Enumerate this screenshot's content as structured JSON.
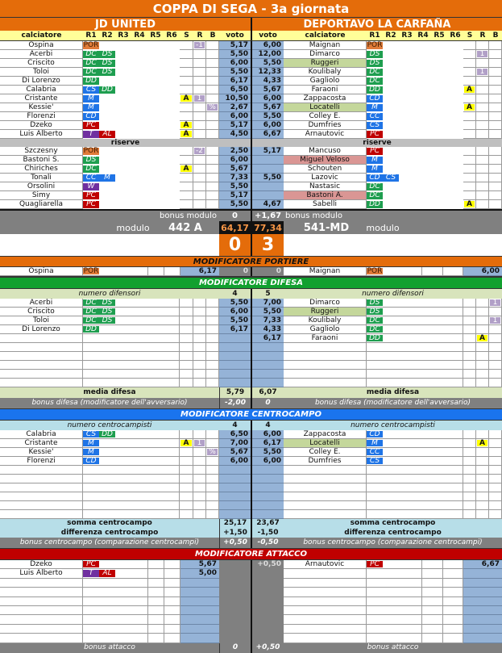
{
  "title": "COPPA DI SEGA - 3a giornata",
  "colors": {
    "POR": "#e07b39",
    "DC": "#1e9e4f",
    "DS": "#1e9e4f",
    "DD": "#1e9e4f",
    "CS": "#1f74e6",
    "CD": "#1f74e6",
    "M": "#1f74e6",
    "CC": "#1f74e6",
    "PC": "#c00000",
    "AL": "#c00000",
    "T": "#7030a0",
    "W": "#7030a0",
    "green_hl": "#c4d79b",
    "pink_hl": "#da9694",
    "voto": "#95b3d7",
    "orange": "#e46c0a"
  },
  "home": {
    "name": "JD UNITED"
  },
  "away": {
    "name": "DEPORTAVO LA CARFAÑA"
  },
  "columns": {
    "player": "calciatore",
    "r1": "R1",
    "r2": "R2",
    "r3": "R3",
    "r4": "R4",
    "r5": "R5",
    "r6": "R6",
    "s": "S",
    "r": "R",
    "b": "B",
    "voto": "voto"
  },
  "starters": [
    {
      "l": {
        "name": "Ospina",
        "roles": [
          "POR"
        ],
        "r": "-1",
        "voto": "5,17"
      },
      "r": {
        "name": "Maignan",
        "roles": [
          "POR"
        ],
        "voto": "6,00"
      }
    },
    {
      "l": {
        "name": "Acerbi",
        "roles": [
          "DC",
          "DS"
        ],
        "voto": "5,50"
      },
      "r": {
        "name": "Dimarco",
        "roles": [
          "DS"
        ],
        "r": "1",
        "voto": "12,00"
      }
    },
    {
      "l": {
        "name": "Criscito",
        "roles": [
          "DC",
          "DS"
        ],
        "voto": "6,00"
      },
      "r": {
        "name": "Ruggeri",
        "roles": [
          "DS"
        ],
        "hl": "green",
        "voto": "5,50"
      }
    },
    {
      "l": {
        "name": "Toloi",
        "roles": [
          "DC",
          "DS"
        ],
        "voto": "5,50"
      },
      "r": {
        "name": "Koulibaly",
        "roles": [
          "DC"
        ],
        "r": "1",
        "voto": "12,33"
      }
    },
    {
      "l": {
        "name": "Di Lorenzo",
        "roles": [
          "DD"
        ],
        "voto": "6,17"
      },
      "r": {
        "name": "Gagliolo",
        "roles": [
          "DC"
        ],
        "voto": "4,33"
      }
    },
    {
      "l": {
        "name": "Calabria",
        "roles": [
          "CS",
          "DD"
        ],
        "voto": "6,50"
      },
      "r": {
        "name": "Faraoni",
        "roles": [
          "DD"
        ],
        "s": "A",
        "voto": "5,67"
      }
    },
    {
      "l": {
        "name": "Cristante",
        "roles": [
          "M"
        ],
        "s": "A",
        "r": "1",
        "voto": "10,50"
      },
      "r": {
        "name": "Zappacosta",
        "roles": [
          "CD"
        ],
        "voto": "6,00"
      }
    },
    {
      "l": {
        "name": "Kessie'",
        "roles": [
          "M"
        ],
        "b": "%",
        "voto": "2,67"
      },
      "r": {
        "name": "Locatelli",
        "roles": [
          "M"
        ],
        "hl": "green",
        "s": "A",
        "voto": "5,67"
      }
    },
    {
      "l": {
        "name": "Florenzi",
        "roles": [
          "CD"
        ],
        "voto": "6,00"
      },
      "r": {
        "name": "Colley E.",
        "roles": [
          "CC"
        ],
        "voto": "5,50"
      }
    },
    {
      "l": {
        "name": "Dzeko",
        "roles": [
          "PC"
        ],
        "s": "A",
        "voto": "5,17"
      },
      "r": {
        "name": "Dumfries",
        "roles": [
          "CS"
        ],
        "voto": "6,00"
      }
    },
    {
      "l": {
        "name": "Luis Alberto",
        "roles": [
          "T",
          "AL"
        ],
        "s": "A",
        "voto": "4,50"
      },
      "r": {
        "name": "Arnautovic",
        "roles": [
          "PC"
        ],
        "voto": "6,67"
      }
    }
  ],
  "reserves_label": "riserve",
  "reserves": [
    {
      "l": {
        "name": "Szczesny",
        "roles": [
          "POR"
        ],
        "r": "-2",
        "voto": "2,50"
      },
      "r": {
        "name": "Mancuso",
        "roles": [
          "PC"
        ],
        "voto": "5,17"
      }
    },
    {
      "l": {
        "name": "Bastoni S.",
        "roles": [
          "DS"
        ],
        "voto": "6,00"
      },
      "r": {
        "name": "Miguel Veloso",
        "roles": [
          "M"
        ],
        "hl": "pink"
      }
    },
    {
      "l": {
        "name": "Chiriches",
        "roles": [
          "DC"
        ],
        "s": "A",
        "voto": "5,67"
      },
      "r": {
        "name": "Schouten",
        "roles": [
          "M"
        ]
      }
    },
    {
      "l": {
        "name": "Tonali",
        "roles": [
          "CC",
          "M"
        ],
        "voto": "7,33"
      },
      "r": {
        "name": "Lazovic",
        "roles": [
          "CD",
          "CS"
        ],
        "voto": "5,50"
      }
    },
    {
      "l": {
        "name": "Orsolini",
        "roles": [
          "W"
        ],
        "voto": "5,50"
      },
      "r": {
        "name": "Nastasic",
        "roles": [
          "DC"
        ]
      }
    },
    {
      "l": {
        "name": "Simy",
        "roles": [
          "PC"
        ],
        "voto": "5,17"
      },
      "r": {
        "name": "Bastoni A.",
        "roles": [
          "DC"
        ],
        "hl": "pink"
      }
    },
    {
      "l": {
        "name": "Quagliarella",
        "roles": [
          "PC"
        ],
        "voto": "5,50"
      },
      "r": {
        "name": "Sabelli",
        "roles": [
          "DD"
        ],
        "s": "A",
        "voto": "4,67"
      }
    }
  ],
  "bonus_modulo": {
    "label": "bonus modulo",
    "home": "0",
    "away": "+1,67"
  },
  "modulo": {
    "label": "modulo",
    "home": "442 A",
    "away": "541-MD",
    "home_total": "64,17",
    "away_total": "77,34"
  },
  "score": {
    "home": "0",
    "away": "3"
  },
  "portiere": {
    "title": "MODIFICATORE PORTIERE",
    "l": {
      "name": "Ospina",
      "roles": [
        "POR"
      ],
      "voto": "6,17",
      "mid": "0"
    },
    "r": {
      "name": "Maignan",
      "roles": [
        "POR"
      ],
      "voto": "6,00",
      "mid": "0"
    }
  },
  "difesa": {
    "title": "MODIFICATORE DIFESA",
    "count_label": "numero difensori",
    "home_count": "4",
    "away_count": "5",
    "rows": [
      {
        "l": {
          "name": "Acerbi",
          "roles": [
            "DC",
            "DS"
          ],
          "voto": "5,50"
        },
        "r": {
          "name": "Dimarco",
          "roles": [
            "DS"
          ],
          "b": "1",
          "voto": "7,00"
        }
      },
      {
        "l": {
          "name": "Criscito",
          "roles": [
            "DC",
            "DS"
          ],
          "voto": "6,00"
        },
        "r": {
          "name": "Ruggeri",
          "roles": [
            "DS"
          ],
          "hl": "green",
          "voto": "5,50"
        }
      },
      {
        "l": {
          "name": "Toloi",
          "roles": [
            "DC",
            "DS"
          ],
          "voto": "5,50"
        },
        "r": {
          "name": "Koulibaly",
          "roles": [
            "DC"
          ],
          "b": "1",
          "voto": "7,33"
        }
      },
      {
        "l": {
          "name": "Di Lorenzo",
          "roles": [
            "DD"
          ],
          "voto": "6,17"
        },
        "r": {
          "name": "Gagliolo",
          "roles": [
            "DC"
          ],
          "voto": "4,33"
        }
      },
      {
        "l": {},
        "r": {
          "name": "Faraoni",
          "roles": [
            "DD"
          ],
          "r": "A",
          "voto": "6,17"
        }
      },
      {
        "l": {},
        "r": {}
      },
      {
        "l": {},
        "r": {}
      },
      {
        "l": {},
        "r": {}
      },
      {
        "l": {},
        "r": {}
      },
      {
        "l": {},
        "r": {}
      }
    ],
    "media_label": "media difesa",
    "media_home": "5,79",
    "media_away": "6,07",
    "bonus_label": "bonus difesa (modificatore dell'avversario)",
    "bonus_home": "-2,00",
    "bonus_away": "0"
  },
  "centrocampo": {
    "title": "MODIFICATORE CENTROCAMPO",
    "count_label": "numero centrocampisti",
    "home_count": "4",
    "away_count": "4",
    "rows": [
      {
        "l": {
          "name": "Calabria",
          "roles": [
            "CS",
            "DD"
          ],
          "voto": "6,50"
        },
        "r": {
          "name": "Zappacosta",
          "roles": [
            "CD"
          ],
          "voto": "6,00"
        }
      },
      {
        "l": {
          "name": "Cristante",
          "roles": [
            "M"
          ],
          "s": "A",
          "r": "1",
          "voto": "7,00"
        },
        "r": {
          "name": "Locatelli",
          "roles": [
            "M"
          ],
          "hl": "green",
          "r": "A",
          "voto": "6,17"
        }
      },
      {
        "l": {
          "name": "Kessie'",
          "roles": [
            "M"
          ],
          "b": "%",
          "voto": "5,67"
        },
        "r": {
          "name": "Colley E.",
          "roles": [
            "CC"
          ],
          "voto": "5,50"
        }
      },
      {
        "l": {
          "name": "Florenzi",
          "roles": [
            "CD"
          ],
          "voto": "6,00"
        },
        "r": {
          "name": "Dumfries",
          "roles": [
            "CS"
          ],
          "voto": "6,00"
        }
      },
      {
        "l": {},
        "r": {}
      },
      {
        "l": {},
        "r": {}
      },
      {
        "l": {},
        "r": {}
      },
      {
        "l": {},
        "r": {}
      },
      {
        "l": {},
        "r": {}
      },
      {
        "l": {},
        "r": {}
      }
    ],
    "somma_label": "somma centrocampo",
    "somma_home": "25,17",
    "somma_away": "23,67",
    "diff_label": "differenza centrocampo",
    "diff_home": "+1,50",
    "diff_away": "-1,50",
    "bonus_label": "bonus centrocampo (comparazione centrocampi)",
    "bonus_home": "+0,50",
    "bonus_away": "-0,50"
  },
  "attacco": {
    "title": "MODIFICATORE ATTACCO",
    "rows": [
      {
        "l": {
          "name": "Dzeko",
          "roles": [
            "PC"
          ],
          "voto": "5,67"
        },
        "r": {
          "name": "Arnautovic",
          "roles": [
            "PC"
          ],
          "voto": "6,67",
          "mid": "+0,50"
        }
      },
      {
        "l": {
          "name": "Luis Alberto",
          "roles": [
            "T",
            "AL"
          ],
          "voto": "5,00"
        },
        "r": {}
      },
      {
        "l": {},
        "r": {}
      },
      {
        "l": {},
        "r": {}
      },
      {
        "l": {},
        "r": {}
      },
      {
        "l": {},
        "r": {}
      },
      {
        "l": {},
        "r": {}
      },
      {
        "l": {},
        "r": {}
      },
      {
        "l": {},
        "r": {}
      }
    ],
    "bonus_label": "bonus attacco",
    "bonus_home": "0",
    "bonus_away": "+0,50"
  }
}
